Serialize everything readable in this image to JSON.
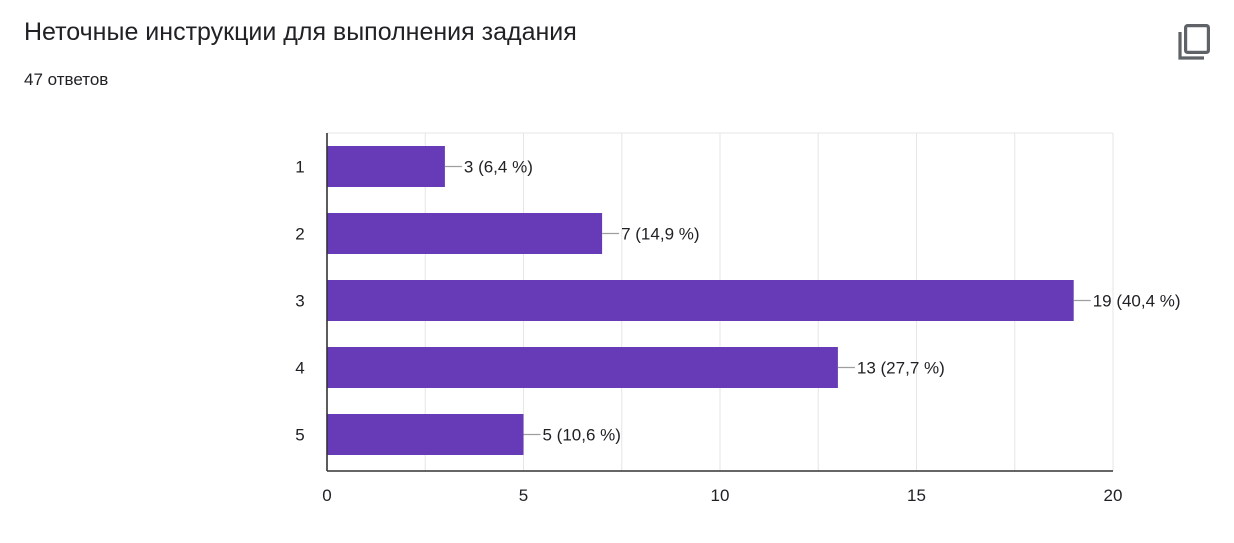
{
  "header": {
    "title": "Неточные инструкции для выполнения задания",
    "responses": "47 ответов",
    "copy_icon": "copy-icon"
  },
  "colors": {
    "bar": "#673ab7",
    "grid": "#e6e6e6",
    "axis": "#333333",
    "leader": "#9e9e9e",
    "text": "#202124"
  },
  "chart_data": {
    "type": "bar",
    "orientation": "horizontal",
    "categories": [
      "1",
      "2",
      "3",
      "4",
      "5"
    ],
    "values": [
      3,
      7,
      19,
      13,
      5
    ],
    "labels": [
      "3 (6,4 %)",
      "7 (14,9 %)",
      "19 (40,4 %)",
      "13 (27,7 %)",
      "5 (10,6 %)"
    ],
    "xlim": [
      0,
      20
    ],
    "xticks": [
      "0",
      "5",
      "10",
      "15",
      "20"
    ],
    "xtick_values": [
      0,
      5,
      10,
      15,
      20
    ],
    "minor_grid_step": 2.5,
    "grid": true,
    "legend": "none"
  }
}
